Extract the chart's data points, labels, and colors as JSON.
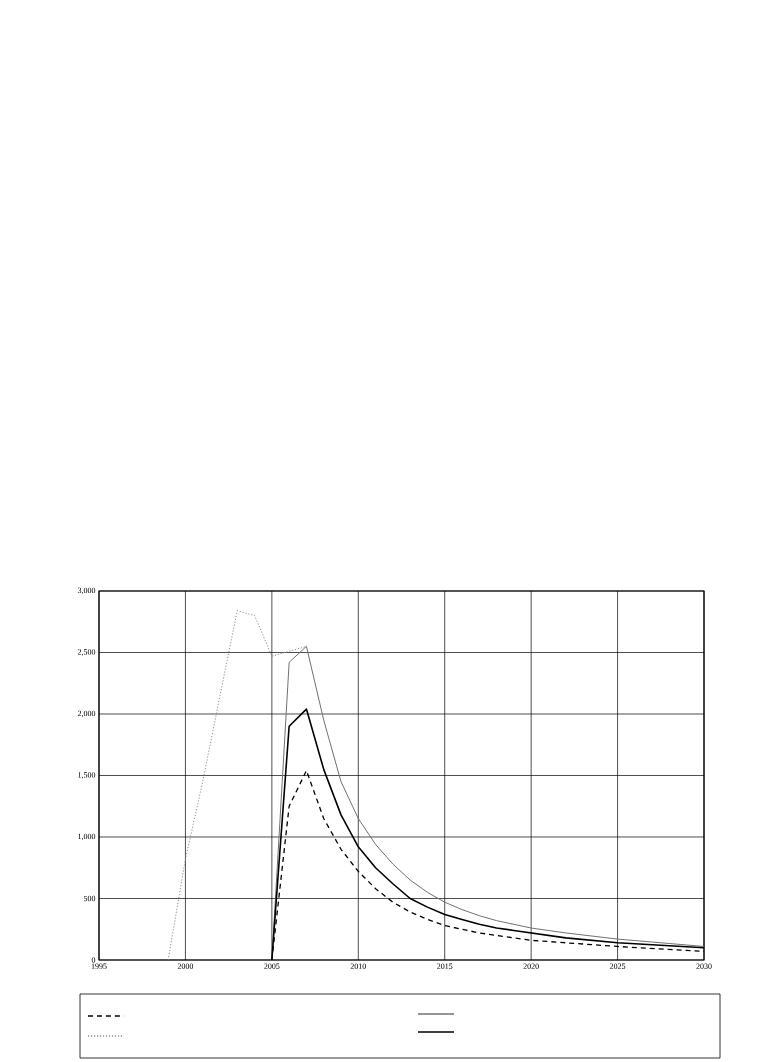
{
  "chart_data": {
    "type": "line",
    "x": [
      1999,
      2000,
      2001,
      2002,
      2003,
      2004,
      2005,
      2006,
      2007,
      2008,
      2009,
      2010,
      2011,
      2012,
      2013,
      2014,
      2015,
      2016,
      2017,
      2018,
      2019,
      2020,
      2022,
      2025,
      2030
    ],
    "series": [
      {
        "color": "#000000",
        "line_style": "dashed",
        "values": [
          null,
          null,
          null,
          null,
          null,
          null,
          0,
          1250,
          1540,
          1150,
          900,
          720,
          580,
          470,
          390,
          330,
          280,
          250,
          220,
          200,
          180,
          160,
          140,
          110,
          70
        ]
      },
      {
        "color": "#8c8c8c",
        "line_style": "dotted",
        "values": [
          0,
          820,
          1450,
          2150,
          2840,
          2800,
          2470,
          2510,
          2550,
          null,
          null,
          null,
          null,
          null,
          null,
          null,
          null,
          null,
          null,
          null,
          null,
          null,
          null,
          null,
          null
        ]
      },
      {
        "color": "#707070",
        "line_style": "solid",
        "values": [
          null,
          null,
          null,
          null,
          null,
          null,
          0,
          2420,
          2550,
          1950,
          1450,
          1150,
          940,
          780,
          650,
          550,
          470,
          410,
          360,
          320,
          290,
          260,
          220,
          170,
          110
        ]
      },
      {
        "color": "#000000",
        "line_style": "solid",
        "values": [
          null,
          null,
          null,
          null,
          null,
          null,
          0,
          1900,
          2040,
          1550,
          1180,
          920,
          750,
          620,
          500,
          430,
          370,
          330,
          290,
          260,
          240,
          220,
          180,
          140,
          100
        ]
      }
    ],
    "xlim": [
      1995,
      2030
    ],
    "xticks": [
      1995,
      2000,
      2005,
      2010,
      2015,
      2020,
      2025,
      2030
    ],
    "ylim": [
      0,
      3000
    ],
    "yticks": [
      0,
      500,
      {
        "value": 1000,
        "label": "1,000"
      },
      {
        "value": 1500,
        "label": "1,500"
      },
      {
        "value": 2000,
        "label": "2,000"
      },
      {
        "value": 2500,
        "label": "2,500"
      },
      {
        "value": 3000,
        "label": "3,000"
      }
    ],
    "grid": true,
    "marker": "none"
  }
}
